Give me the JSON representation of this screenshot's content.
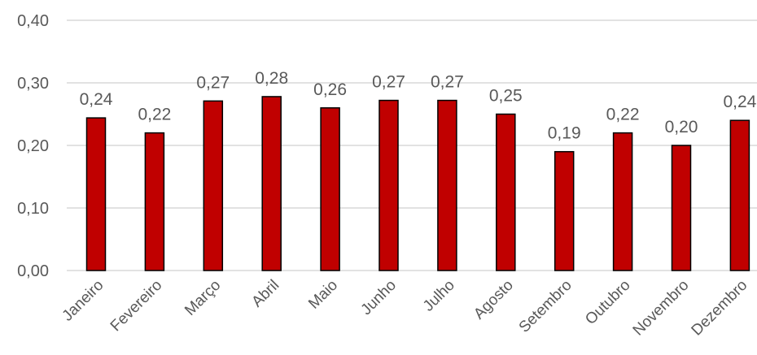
{
  "chart_data": {
    "type": "bar",
    "categories": [
      "Janeiro",
      "Fevereiro",
      "Março",
      "Abril",
      "Maio",
      "Junho",
      "Julho",
      "Agosto",
      "Setembro",
      "Outubro",
      "Novembro",
      "Dezembro"
    ],
    "values": [
      0.244,
      0.22,
      0.271,
      0.278,
      0.26,
      0.272,
      0.272,
      0.25,
      0.19,
      0.22,
      0.2,
      0.24
    ],
    "data_labels": [
      "0,24",
      "0,22",
      "0,27",
      "0,28",
      "0,26",
      "0,27",
      "0,27",
      "0,25",
      "0,19",
      "0,22",
      "0,20",
      "0,24"
    ],
    "y_ticks": [
      {
        "value": 0.0,
        "label": "0,00"
      },
      {
        "value": 0.1,
        "label": "0,10"
      },
      {
        "value": 0.2,
        "label": "0,20"
      },
      {
        "value": 0.3,
        "label": "0,30"
      },
      {
        "value": 0.4,
        "label": "0,40"
      }
    ],
    "ylim": [
      0,
      0.4
    ],
    "grid": true,
    "legend": "none",
    "title": "",
    "xlabel": "",
    "ylabel": "",
    "colors": {
      "bar": "#c00000",
      "bar_edge": "#000000",
      "grid": "#d9d9d9",
      "text": "#595959"
    }
  }
}
